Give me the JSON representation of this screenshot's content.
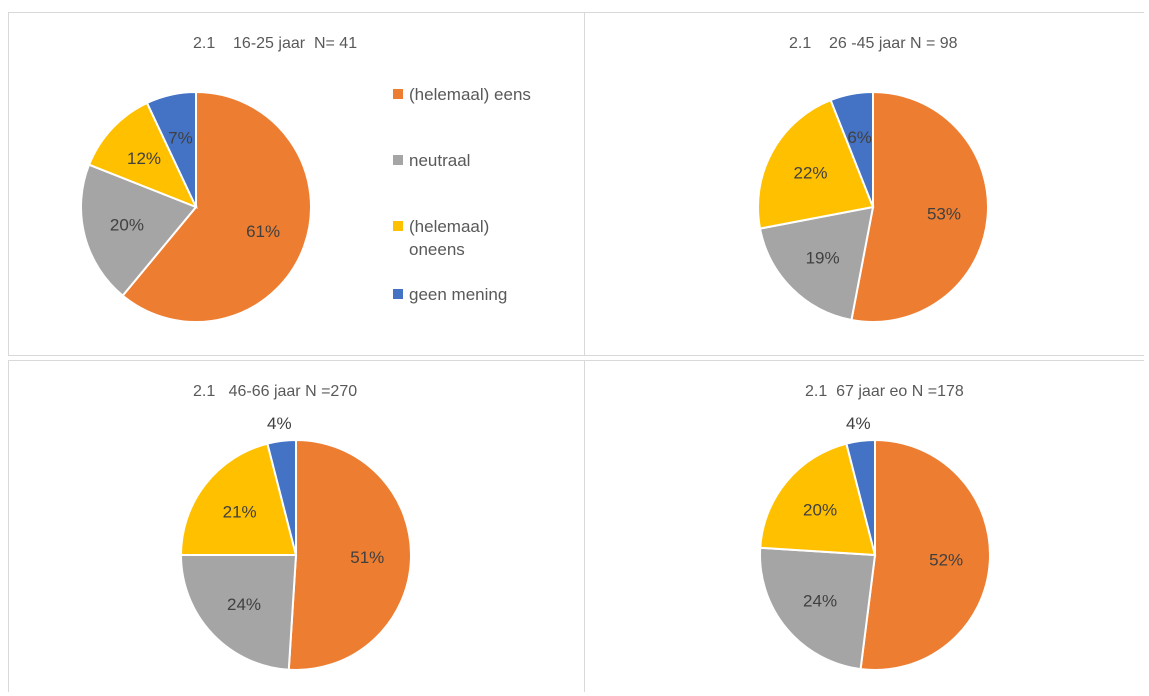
{
  "colors": {
    "eens": "#ED7D31",
    "neutraal": "#A5A5A5",
    "oneens": "#FFC000",
    "geen_mening": "#4472C4"
  },
  "legend": [
    {
      "label": "(helemaal) eens",
      "color": "#ED7D31"
    },
    {
      "label": "neutraal",
      "color": "#A5A5A5"
    },
    {
      "label": "(helemaal) oneens",
      "color": "#FFC000"
    },
    {
      "label": "geen mening",
      "color": "#4472C4"
    }
  ],
  "chart_data": [
    {
      "type": "pie",
      "title": "2.1    16-25 jaar  N= 41",
      "categories": [
        "(helemaal) eens",
        "neutraal",
        "(helemaal) oneens",
        "geen mening"
      ],
      "values": [
        61,
        20,
        12,
        7
      ],
      "labels": [
        "61%",
        "20%",
        "12%",
        "7%"
      ]
    },
    {
      "type": "pie",
      "title": "2.1    26 -45 jaar N = 98",
      "categories": [
        "(helemaal) eens",
        "neutraal",
        "(helemaal) oneens",
        "geen mening"
      ],
      "values": [
        53,
        19,
        22,
        6
      ],
      "labels": [
        "53%",
        "19%",
        "22%",
        "6%"
      ]
    },
    {
      "type": "pie",
      "title": "2.1   46-66 jaar N =270",
      "categories": [
        "(helemaal) eens",
        "neutraal",
        "(helemaal) oneens",
        "geen mening"
      ],
      "values": [
        51,
        24,
        21,
        4
      ],
      "labels": [
        "51%",
        "24%",
        "21%",
        "4%"
      ]
    },
    {
      "type": "pie",
      "title": "2.1  67 jaar eo N =178",
      "categories": [
        "(helemaal) eens",
        "neutraal",
        "(helemaal) oneens",
        "geen mening"
      ],
      "values": [
        52,
        24,
        20,
        4
      ],
      "labels": [
        "52%",
        "24%",
        "20%",
        "4%"
      ]
    }
  ]
}
